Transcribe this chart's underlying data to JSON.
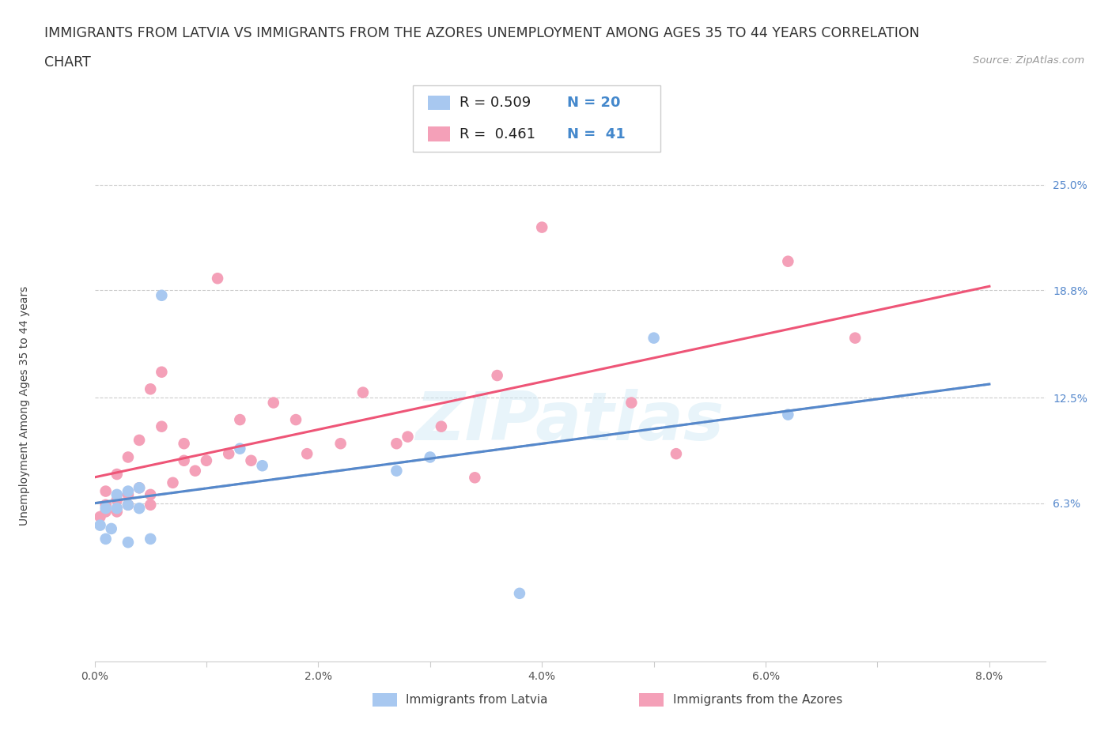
{
  "title_line1": "IMMIGRANTS FROM LATVIA VS IMMIGRANTS FROM THE AZORES UNEMPLOYMENT AMONG AGES 35 TO 44 YEARS CORRELATION",
  "title_line2": "CHART",
  "source": "Source: ZipAtlas.com",
  "ylabel": "Unemployment Among Ages 35 to 44 years",
  "xlim": [
    0.0,
    0.085
  ],
  "ylim": [
    -0.03,
    0.27
  ],
  "xtick_labels": [
    "0.0%",
    "",
    "2.0%",
    "",
    "4.0%",
    "",
    "6.0%",
    "",
    "8.0%"
  ],
  "xtick_vals": [
    0.0,
    0.01,
    0.02,
    0.03,
    0.04,
    0.05,
    0.06,
    0.07,
    0.08
  ],
  "ytick_labels": [
    "6.3%",
    "12.5%",
    "18.8%",
    "25.0%"
  ],
  "ytick_vals": [
    0.063,
    0.125,
    0.188,
    0.25
  ],
  "latvia_color": "#a8c8f0",
  "azores_color": "#f4a0b8",
  "trend_latvia_color": "#5588cc",
  "trend_azores_color": "#ee5577",
  "trend_dashed_color": "#bbbbbb",
  "background_color": "#ffffff",
  "grid_color": "#cccccc",
  "latvia_x": [
    0.0005,
    0.001,
    0.001,
    0.0015,
    0.002,
    0.002,
    0.003,
    0.003,
    0.003,
    0.004,
    0.004,
    0.005,
    0.006,
    0.013,
    0.015,
    0.027,
    0.03,
    0.038,
    0.05,
    0.062
  ],
  "latvia_y": [
    0.05,
    0.06,
    0.042,
    0.048,
    0.068,
    0.06,
    0.07,
    0.062,
    0.04,
    0.06,
    0.072,
    0.042,
    0.185,
    0.095,
    0.085,
    0.082,
    0.09,
    0.01,
    0.16,
    0.115
  ],
  "azores_x": [
    0.0005,
    0.001,
    0.001,
    0.001,
    0.002,
    0.002,
    0.002,
    0.003,
    0.003,
    0.003,
    0.004,
    0.004,
    0.005,
    0.005,
    0.005,
    0.006,
    0.006,
    0.007,
    0.008,
    0.008,
    0.009,
    0.01,
    0.011,
    0.012,
    0.013,
    0.014,
    0.016,
    0.018,
    0.019,
    0.022,
    0.024,
    0.027,
    0.028,
    0.031,
    0.034,
    0.036,
    0.04,
    0.048,
    0.052,
    0.062,
    0.068
  ],
  "azores_y": [
    0.055,
    0.058,
    0.062,
    0.07,
    0.058,
    0.065,
    0.08,
    0.062,
    0.068,
    0.09,
    0.072,
    0.1,
    0.062,
    0.068,
    0.13,
    0.108,
    0.14,
    0.075,
    0.088,
    0.098,
    0.082,
    0.088,
    0.195,
    0.092,
    0.112,
    0.088,
    0.122,
    0.112,
    0.092,
    0.098,
    0.128,
    0.098,
    0.102,
    0.108,
    0.078,
    0.138,
    0.225,
    0.122,
    0.092,
    0.205,
    0.16
  ],
  "title_fontsize": 12.5,
  "axis_label_fontsize": 10,
  "tick_fontsize": 10,
  "legend_fontsize": 13,
  "source_fontsize": 9.5,
  "ytick_color": "#5588cc",
  "xtick_color": "#555555"
}
